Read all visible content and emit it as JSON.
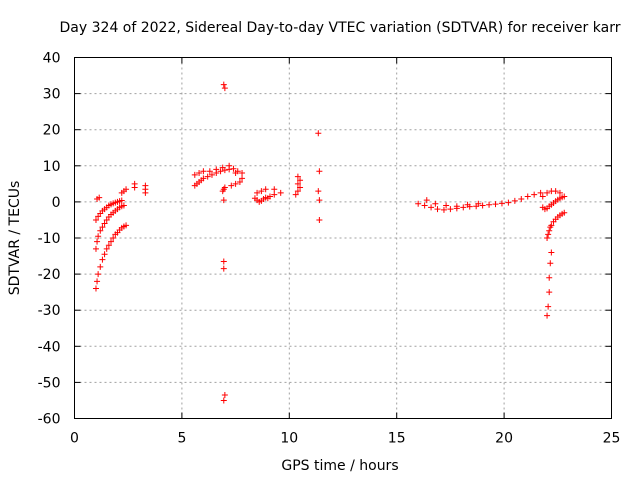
{
  "chart_data": {
    "type": "scatter",
    "title": "Day 324 of 2022, Sidereal Day-to-day VTEC variation (SDTVAR) for receiver karr",
    "xlabel": "GPS time / hours",
    "ylabel": "SDTVAR / TECUs",
    "xlim": [
      0,
      25
    ],
    "ylim": [
      -60,
      40
    ],
    "xticks": [
      0,
      5,
      10,
      15,
      20,
      25
    ],
    "xtick_labels": [
      "0",
      "5",
      "10",
      "15",
      "20",
      "25"
    ],
    "yticks": [
      40,
      30,
      20,
      10,
      0,
      -10,
      -20,
      -30,
      -40,
      -50,
      -60
    ],
    "ytick_labels": [
      "40",
      "30",
      "20",
      "10",
      "0",
      "-10",
      "-20",
      "-30",
      "-40",
      "-50",
      "-60"
    ],
    "grid": true,
    "marker": "+",
    "series": [
      {
        "name": "SDTVAR",
        "color": "#ff0000",
        "x": [
          1.0,
          1.05,
          1.1,
          1.2,
          1.3,
          1.4,
          1.5,
          1.6,
          1.7,
          1.8,
          1.9,
          2.0,
          2.1,
          2.2,
          2.3,
          2.4,
          1.0,
          1.05,
          1.1,
          1.2,
          1.3,
          1.4,
          1.5,
          1.6,
          1.7,
          1.8,
          1.9,
          2.0,
          2.1,
          2.2,
          2.3,
          1.0,
          1.1,
          1.2,
          1.3,
          1.4,
          1.5,
          1.6,
          1.7,
          1.8,
          1.9,
          2.0,
          2.1,
          2.2,
          1.05,
          1.15,
          2.2,
          2.3,
          2.4,
          2.8,
          2.8,
          3.3,
          3.3,
          3.3,
          5.6,
          5.7,
          5.8,
          5.9,
          6.0,
          6.2,
          6.4,
          6.6,
          6.8,
          7.0,
          7.2,
          7.4,
          7.6,
          7.8,
          5.6,
          5.8,
          6.0,
          6.3,
          6.6,
          6.9,
          7.2,
          7.5,
          7.8,
          6.9,
          6.95,
          7.0,
          7.3,
          7.5,
          7.7,
          6.95,
          7.0,
          6.95,
          6.95,
          6.95,
          7.0,
          6.95,
          8.4,
          8.5,
          8.6,
          8.7,
          8.8,
          8.9,
          9.0,
          9.1,
          8.5,
          8.7,
          8.9,
          9.3,
          9.3,
          9.6,
          10.3,
          10.4,
          10.5,
          10.4,
          10.5,
          10.4,
          11.35,
          11.4,
          11.35,
          11.4,
          11.4,
          16.0,
          16.3,
          16.6,
          16.9,
          17.2,
          17.5,
          17.8,
          18.1,
          18.4,
          18.7,
          19.0,
          19.3,
          19.6,
          19.9,
          20.2,
          20.5,
          20.8,
          21.1,
          21.4,
          21.7,
          16.4,
          16.8,
          17.3,
          17.8,
          18.3,
          18.8,
          21.8,
          22.0,
          22.2,
          22.4,
          22.6,
          22.8,
          21.8,
          21.9,
          22.0,
          22.1,
          22.2,
          22.3,
          22.4,
          22.5,
          22.6,
          22.7,
          22.0,
          22.05,
          22.1,
          22.15,
          22.2,
          22.3,
          22.4,
          22.5,
          22.6,
          22.7,
          22.8,
          22.0,
          22.05,
          22.1,
          22.1,
          22.15,
          22.2
        ],
        "y": [
          -24,
          -22,
          -20,
          -18,
          -16,
          -14.5,
          -13,
          -12,
          -11,
          -10,
          -9,
          -8.5,
          -7.8,
          -7.2,
          -6.8,
          -6.5,
          -13,
          -11,
          -9.5,
          -8,
          -7,
          -6,
          -5,
          -4.2,
          -3.5,
          -3,
          -2.5,
          -2,
          -1.5,
          -1.2,
          -1,
          -5,
          -4,
          -3.2,
          -2.5,
          -2,
          -1.5,
          -1,
          -0.7,
          -0.4,
          -0.2,
          0,
          0.2,
          0.4,
          0.8,
          1.2,
          2.5,
          3,
          3.5,
          4,
          5,
          2.5,
          3.5,
          4.5,
          4.5,
          5,
          5.5,
          6,
          6.5,
          7,
          7.5,
          8,
          8.5,
          8.8,
          9,
          9.2,
          8.5,
          8,
          7.5,
          8,
          8.5,
          8.5,
          9,
          9.5,
          10,
          8,
          6.5,
          3,
          3.5,
          4,
          4.5,
          5,
          5.5,
          32.5,
          31.5,
          0.5,
          -16.5,
          -18.5,
          -53.5,
          -55,
          1,
          0.5,
          0,
          0.3,
          0.8,
          1.2,
          1,
          1.5,
          2.5,
          3,
          3.5,
          2,
          3.5,
          2.5,
          2,
          3,
          4,
          5,
          6,
          7,
          19,
          8.5,
          3,
          0.5,
          -5,
          -0.5,
          -1,
          -1.5,
          -2,
          -2.2,
          -2,
          -1.8,
          -1.5,
          -1.3,
          -1.2,
          -1,
          -0.8,
          -0.6,
          -0.4,
          -0.2,
          0.3,
          0.8,
          1.5,
          2,
          2.5,
          0.5,
          -0.5,
          -1,
          -1.2,
          -0.8,
          -0.5,
          1.5,
          2.5,
          3,
          3,
          2.5,
          1.5,
          -1.5,
          -2,
          -1.8,
          -1.2,
          -0.8,
          -0.3,
          0.2,
          0.6,
          1,
          1.3,
          -10,
          -9,
          -8,
          -7,
          -6.5,
          -5.5,
          -4.8,
          -4.2,
          -3.7,
          -3.3,
          -3,
          -31.5,
          -29,
          -25,
          -21,
          -17,
          -14
        ]
      }
    ]
  }
}
